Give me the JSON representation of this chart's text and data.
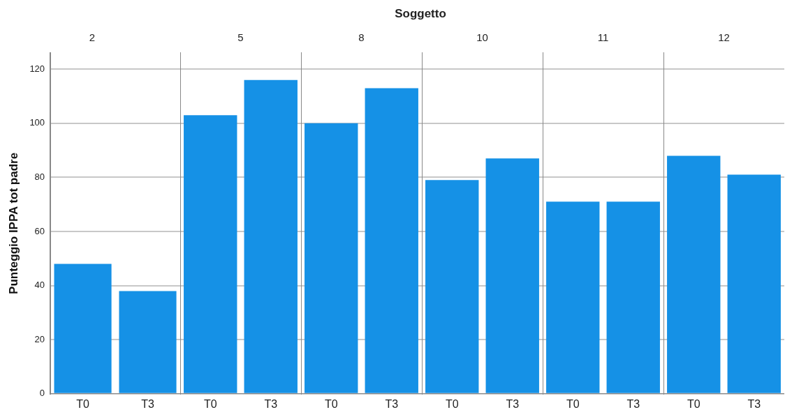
{
  "chart_data": [
    {
      "type": "bar",
      "title": "2",
      "ylabel": "Punteggio IPPA tot padre",
      "annotations": [
        "Soggetto"
      ],
      "categories": [
        "T0",
        "T3"
      ],
      "values": [
        48,
        38
      ],
      "color": "#1591e6",
      "ylim": [
        0,
        126
      ],
      "yticks": [
        0,
        20,
        40,
        60,
        80,
        100,
        120
      ],
      "grid": "y"
    },
    {
      "type": "bar",
      "title": "5",
      "categories": [
        "T0",
        "T3"
      ],
      "values": [
        103,
        116
      ],
      "color": "#1591e6",
      "ylim": [
        0,
        126
      ],
      "yticks": [
        0,
        20,
        40,
        60,
        80,
        100,
        120
      ],
      "grid": "y",
      "tick_labels": "x"
    },
    {
      "type": "bar",
      "title": "8",
      "categories": [
        "T0",
        "T3"
      ],
      "values": [
        100,
        113
      ],
      "color": "#1591e6",
      "ylim": [
        0,
        126
      ],
      "yticks": [
        0,
        20,
        40,
        60,
        80,
        100,
        120
      ],
      "grid": "y",
      "tick_labels": "x"
    },
    {
      "type": "bar",
      "title": "10",
      "categories": [
        "T0",
        "T3"
      ],
      "values": [
        79,
        87
      ],
      "color": "#1591e6",
      "ylim": [
        0,
        126
      ],
      "yticks": [
        0,
        20,
        40,
        60,
        80,
        100,
        120
      ],
      "grid": "y",
      "tick_labels": "x"
    },
    {
      "type": "bar",
      "title": "11",
      "categories": [
        "T0",
        "T3"
      ],
      "values": [
        71,
        71
      ],
      "color": "#1591e6",
      "ylim": [
        0,
        126
      ],
      "yticks": [
        0,
        20,
        40,
        60,
        80,
        100,
        120
      ],
      "grid": "y",
      "tick_labels": "x"
    },
    {
      "type": "bar",
      "title": "12",
      "categories": [
        "T0",
        "T3"
      ],
      "values": [
        88,
        81
      ],
      "color": "#1591e6",
      "ylim": [
        0,
        126
      ],
      "yticks": [
        0,
        20,
        40,
        60,
        80,
        100,
        120
      ],
      "grid": "y",
      "tick_labels": "x"
    }
  ]
}
